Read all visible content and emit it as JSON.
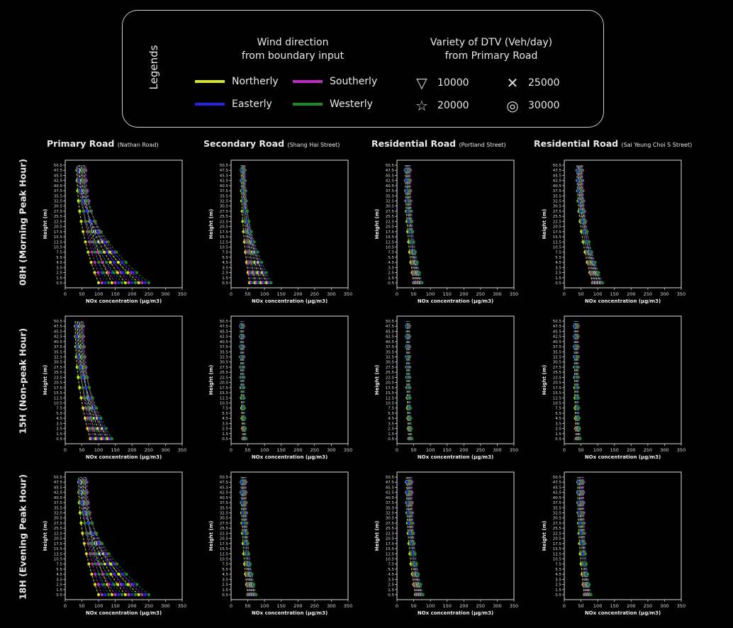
{
  "legend": {
    "title": "Legends",
    "wind_heading": [
      "Wind direction",
      "from boundary input"
    ],
    "dtv_heading": [
      "Variety of DTV (Veh/day)",
      "from Primary Road"
    ],
    "wind_items": [
      {
        "label": "Northerly",
        "color": "#d7e61c"
      },
      {
        "label": "Southerly",
        "color": "#c12ac1"
      },
      {
        "label": "Easterly",
        "color": "#2424e6"
      },
      {
        "label": "Westerly",
        "color": "#1f8a1f"
      }
    ],
    "dtv_items": [
      {
        "label": "10000",
        "marker": "triangle-down-icon",
        "glyph": "▽"
      },
      {
        "label": "25000",
        "marker": "x-icon",
        "glyph": "✕"
      },
      {
        "label": "20000",
        "marker": "star-icon",
        "glyph": "☆"
      },
      {
        "label": "30000",
        "marker": "circle-icon",
        "glyph": "◎"
      }
    ]
  },
  "columns": [
    {
      "title": "Primary Road",
      "subtitle": "(Nathan Road)"
    },
    {
      "title": "Secondary Road",
      "subtitle": "(Shang Hai Street)"
    },
    {
      "title": "Residential Road",
      "subtitle": "(Portland Street)"
    },
    {
      "title": "Residential Road",
      "subtitle": "(Sai Yeung Choi S Street)"
    }
  ],
  "rows": [
    {
      "title": "08H (Morning Peak Hour)"
    },
    {
      "title": "15H (Non-peak Hour)"
    },
    {
      "title": "18H (Evening Peak Hour)"
    }
  ],
  "chart_data": {
    "type": "line",
    "xlabel": "NOx concentration (μg/m3)",
    "ylabel": "Height (m)",
    "xlim": [
      0,
      350
    ],
    "xticks": [
      0,
      50,
      100,
      150,
      200,
      250,
      300,
      350
    ],
    "yticks": [
      0.5,
      1.5,
      2.5,
      3.5,
      4.5,
      5.5,
      7.5,
      10.5,
      12.5,
      15.5,
      17.5,
      20.5,
      22.5,
      25.5,
      27.5,
      30.5,
      32.5,
      35.5,
      37.5,
      40.5,
      42.5,
      45.5,
      47.5,
      50.5
    ],
    "series_colors": [
      "#d7e61c",
      "#c12ac1",
      "#2424e6",
      "#1f8a1f"
    ],
    "panels": [
      {
        "row": 0,
        "col": 0,
        "top_range": [
          35,
          62
        ],
        "bottom_range": [
          100,
          250
        ]
      },
      {
        "row": 0,
        "col": 1,
        "top_range": [
          30,
          42
        ],
        "bottom_range": [
          55,
          120
        ]
      },
      {
        "row": 0,
        "col": 2,
        "top_range": [
          25,
          40
        ],
        "bottom_range": [
          50,
          75
        ]
      },
      {
        "row": 0,
        "col": 3,
        "top_range": [
          38,
          55
        ],
        "bottom_range": [
          85,
          115
        ]
      },
      {
        "row": 1,
        "col": 0,
        "top_range": [
          30,
          55
        ],
        "bottom_range": [
          75,
          140
        ]
      },
      {
        "row": 1,
        "col": 1,
        "top_range": [
          28,
          38
        ],
        "bottom_range": [
          35,
          45
        ]
      },
      {
        "row": 1,
        "col": 2,
        "top_range": [
          28,
          38
        ],
        "bottom_range": [
          35,
          45
        ]
      },
      {
        "row": 1,
        "col": 3,
        "top_range": [
          30,
          42
        ],
        "bottom_range": [
          35,
          48
        ]
      },
      {
        "row": 2,
        "col": 0,
        "top_range": [
          40,
          65
        ],
        "bottom_range": [
          100,
          250
        ]
      },
      {
        "row": 2,
        "col": 1,
        "top_range": [
          30,
          45
        ],
        "bottom_range": [
          50,
          75
        ]
      },
      {
        "row": 2,
        "col": 2,
        "top_range": [
          28,
          45
        ],
        "bottom_range": [
          55,
          78
        ]
      },
      {
        "row": 2,
        "col": 3,
        "top_range": [
          40,
          58
        ],
        "bottom_range": [
          60,
          80
        ]
      }
    ]
  }
}
